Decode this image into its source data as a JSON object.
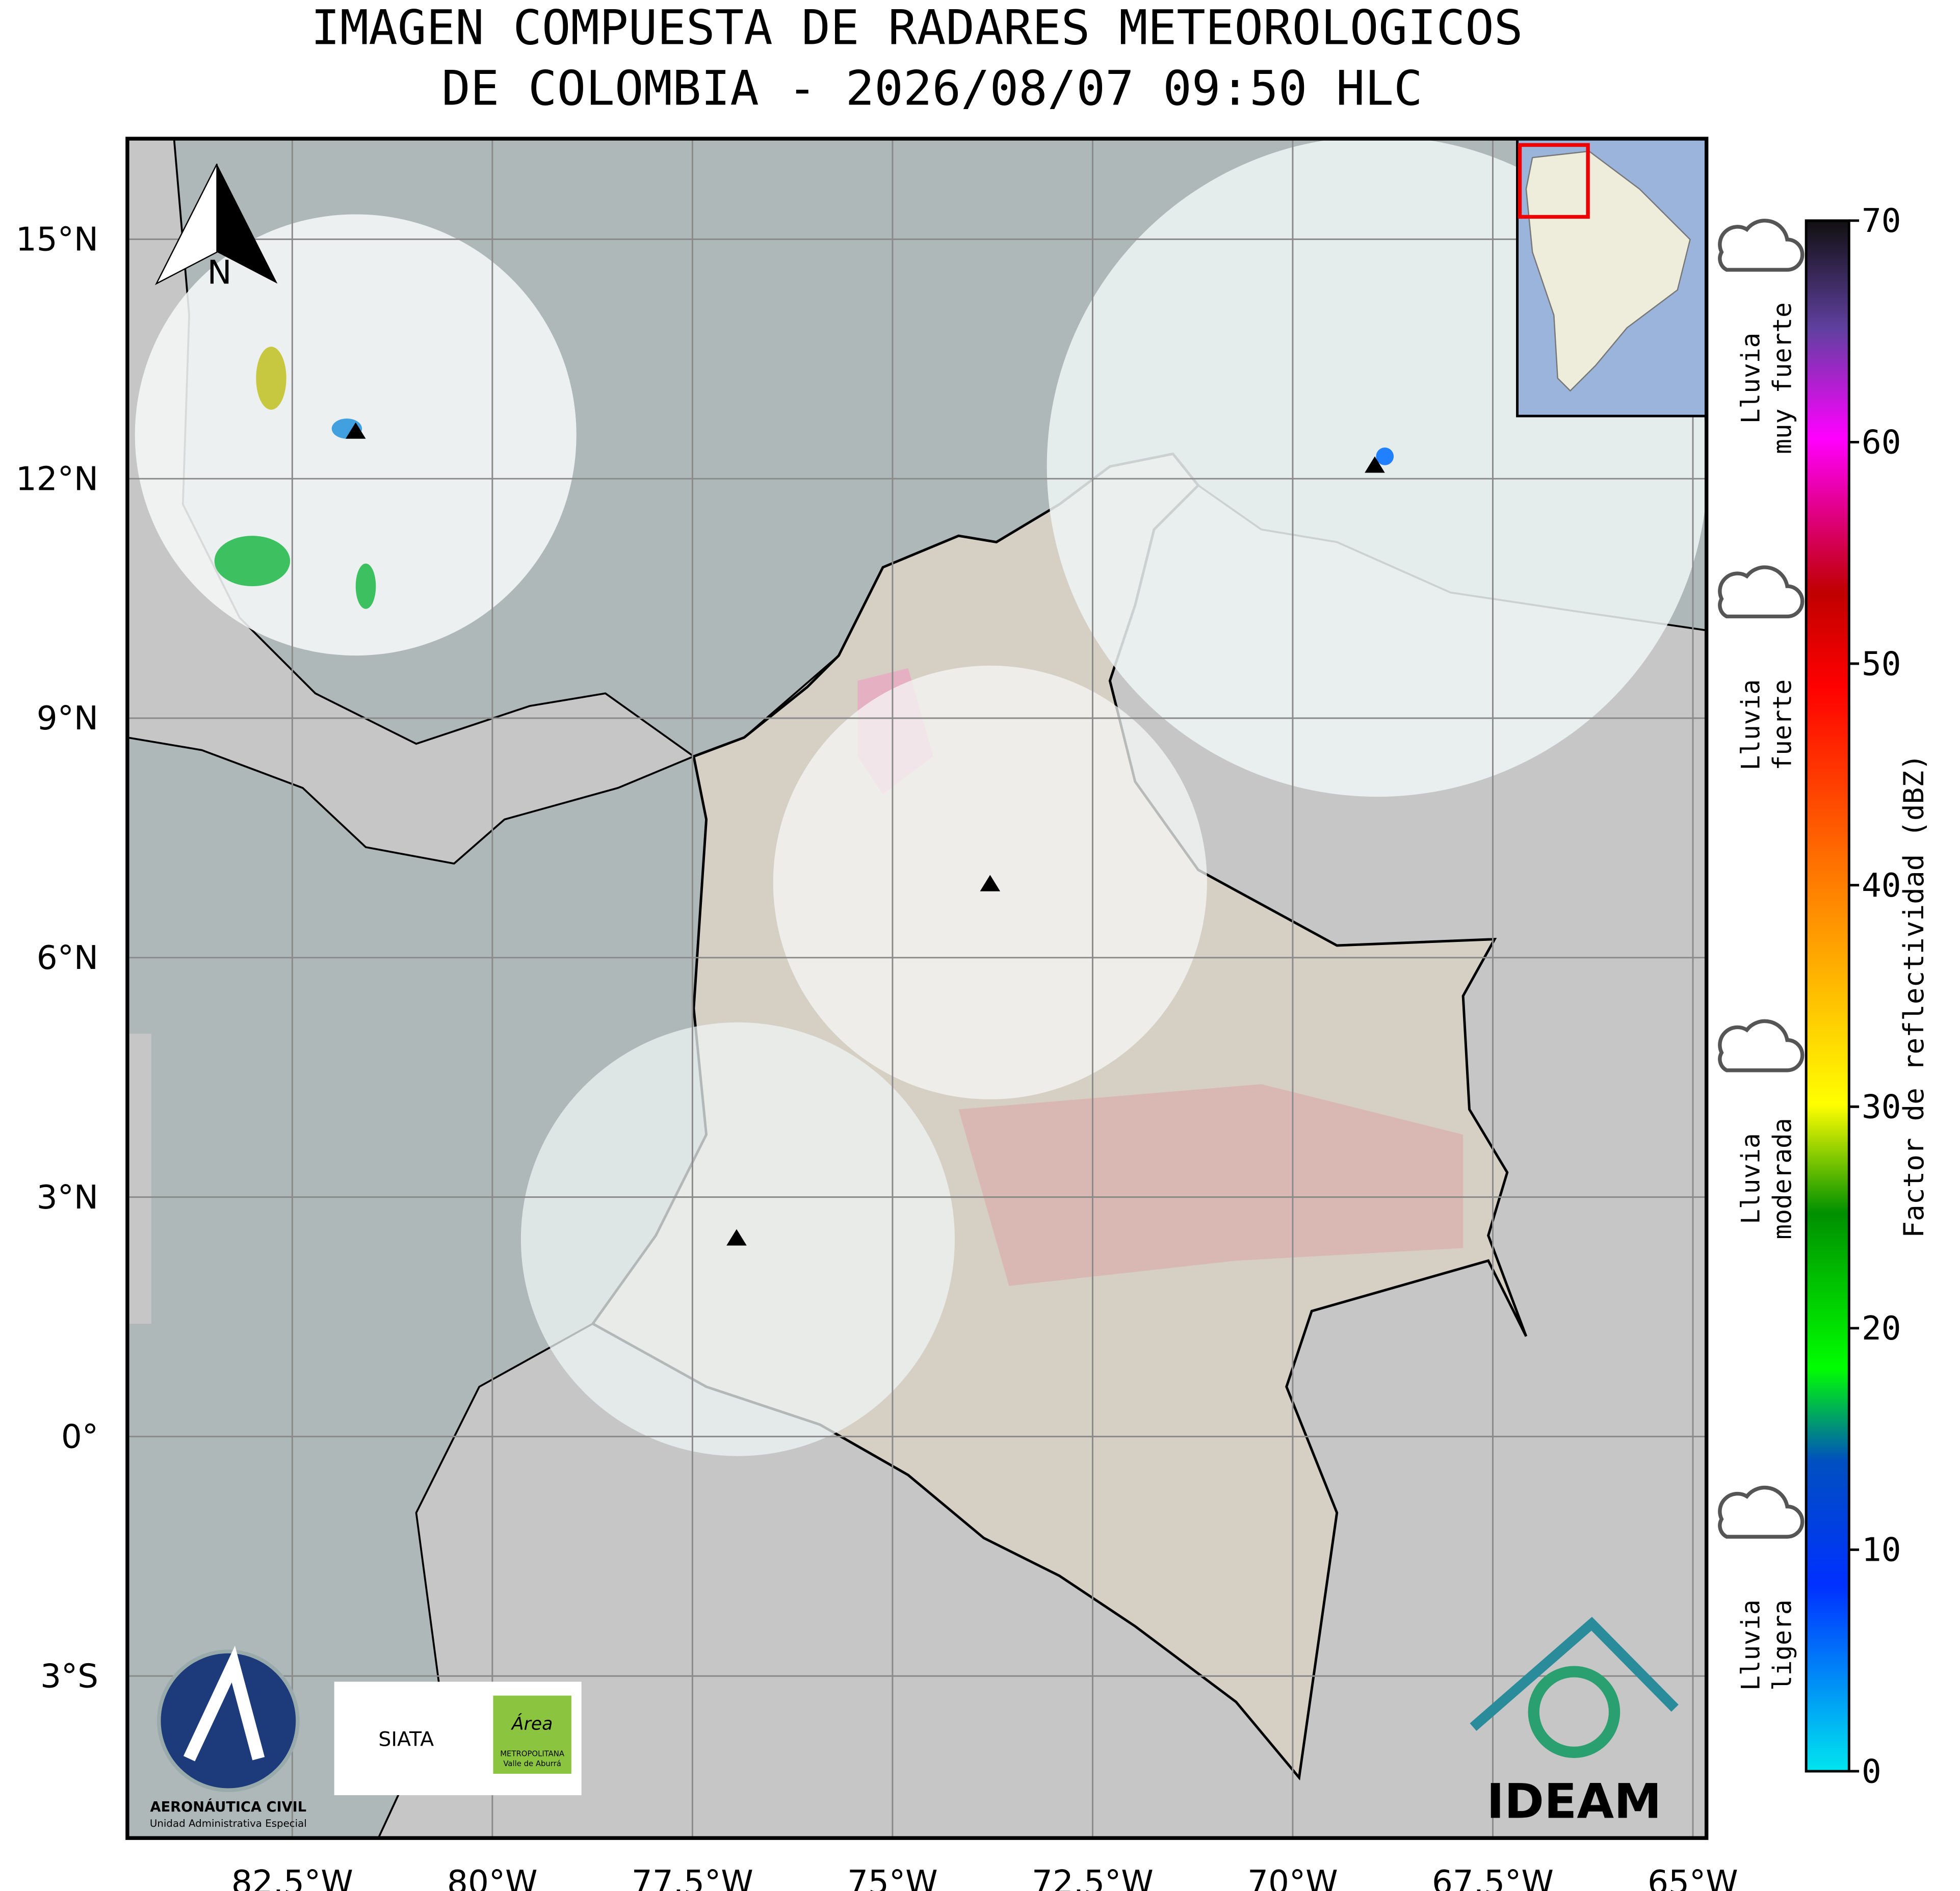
{
  "title_lines": [
    "IMAGEN COMPUESTA DE RADARES METEOROLOGICOS",
    "DE COLOMBIA - 2026/08/07 09:50 HLC"
  ],
  "map": {
    "xlim": [
      -84.56,
      -64.83
    ],
    "ylim": [
      -5.03,
      16.26
    ],
    "xticks": [
      {
        "value": -82.5,
        "label": "82.5°W"
      },
      {
        "value": -80,
        "label": "80°W"
      },
      {
        "value": -77.5,
        "label": "77.5°W"
      },
      {
        "value": -75,
        "label": "75°W"
      },
      {
        "value": -72.5,
        "label": "72.5°W"
      },
      {
        "value": -70,
        "label": "70°W"
      },
      {
        "value": -67.5,
        "label": "67.5°W"
      },
      {
        "value": -65,
        "label": "65°W"
      }
    ],
    "yticks": [
      {
        "value": 15,
        "label": "15°N"
      },
      {
        "value": 12,
        "label": "12°N"
      },
      {
        "value": 9,
        "label": "9°N"
      },
      {
        "value": 6,
        "label": "6°N"
      },
      {
        "value": 3,
        "label": "3°N"
      },
      {
        "value": 0,
        "label": "0°"
      },
      {
        "value": -3,
        "label": "3°S"
      }
    ]
  },
  "north_label": "N",
  "colorbar": {
    "label": "Factor de reflectividad (dBZ)",
    "lim": [
      0,
      70
    ],
    "ticks": [
      0,
      10,
      20,
      30,
      40,
      50,
      60,
      70
    ]
  },
  "rain_labels": [
    [
      "Lluvia",
      "muy fuerte"
    ],
    [
      "Lluvia",
      "fuerte"
    ],
    [
      "Lluvia",
      "moderada"
    ],
    [
      "Lluvia",
      "ligera"
    ]
  ],
  "logos": {
    "aerocivil": "AERONÁUTICA CIVIL",
    "aerocivil_sub": "Unidad Administrativa Especial",
    "siata": "SIATA",
    "area": "Área",
    "area_sub1": "METROPOLITANA",
    "area_sub2": "Valle de Aburrá",
    "ideam": "IDEAM"
  }
}
